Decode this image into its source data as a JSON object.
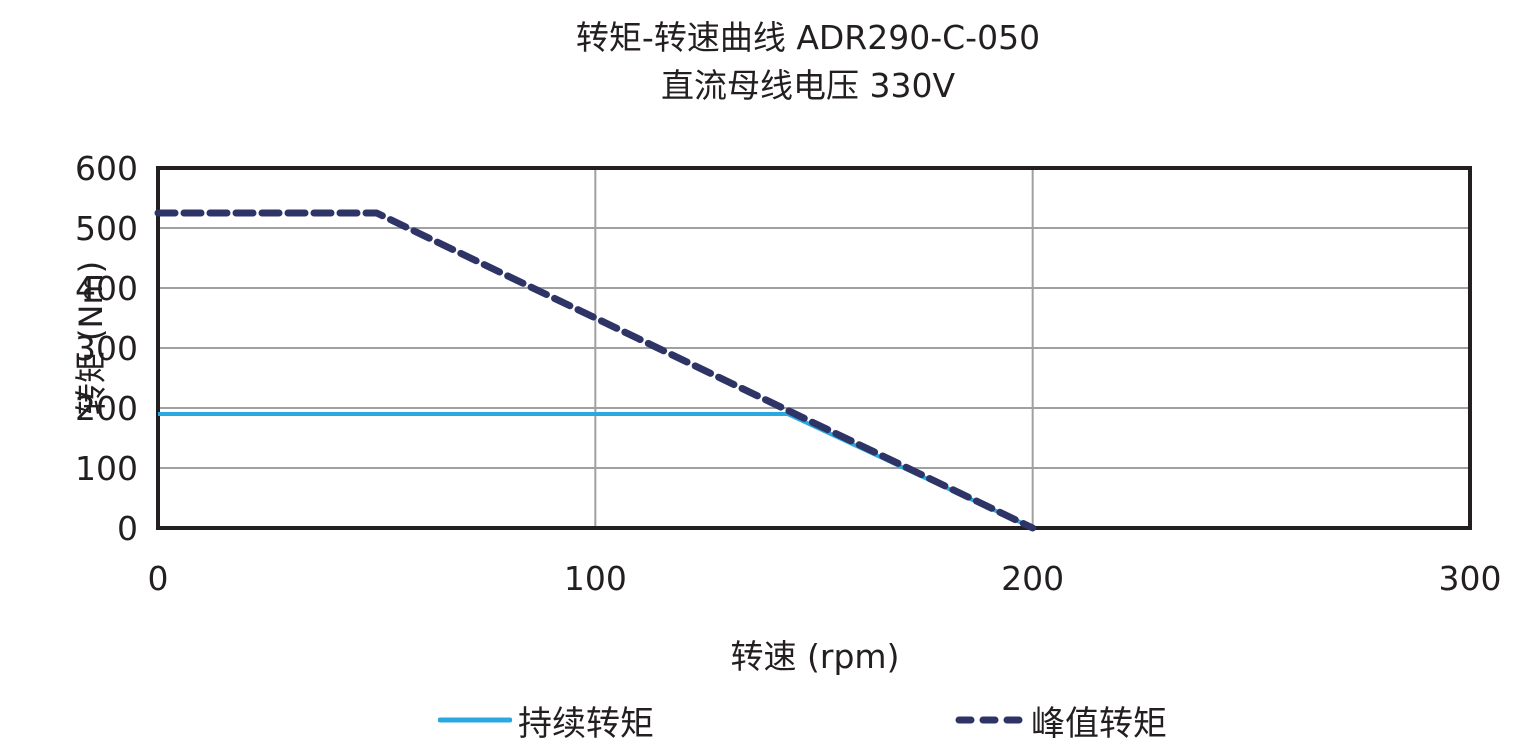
{
  "chart_data": {
    "type": "line",
    "title": "转矩-转速曲线 ADR290-C-050",
    "subtitle": "直流母线电压 330V",
    "xlabel": "转速 (rpm)",
    "ylabel": "转矩 (Nm)",
    "xlim": [
      0,
      300
    ],
    "ylim": [
      0,
      600
    ],
    "xticks": [
      0,
      100,
      200,
      300
    ],
    "yticks": [
      0,
      100,
      200,
      300,
      400,
      500,
      600
    ],
    "grid": true,
    "legend_position": "bottom",
    "series": [
      {
        "name": "持续转矩",
        "style": "solid",
        "color": "#29a9e0",
        "x": [
          0,
          144,
          200
        ],
        "y": [
          190,
          190,
          0
        ]
      },
      {
        "name": "峰值转矩",
        "style": "dashed",
        "color": "#2e3466",
        "x": [
          0,
          50,
          200
        ],
        "y": [
          525,
          525,
          0
        ]
      }
    ]
  },
  "legend": {
    "continuous": "持续转矩",
    "peak": "峰值转矩"
  }
}
